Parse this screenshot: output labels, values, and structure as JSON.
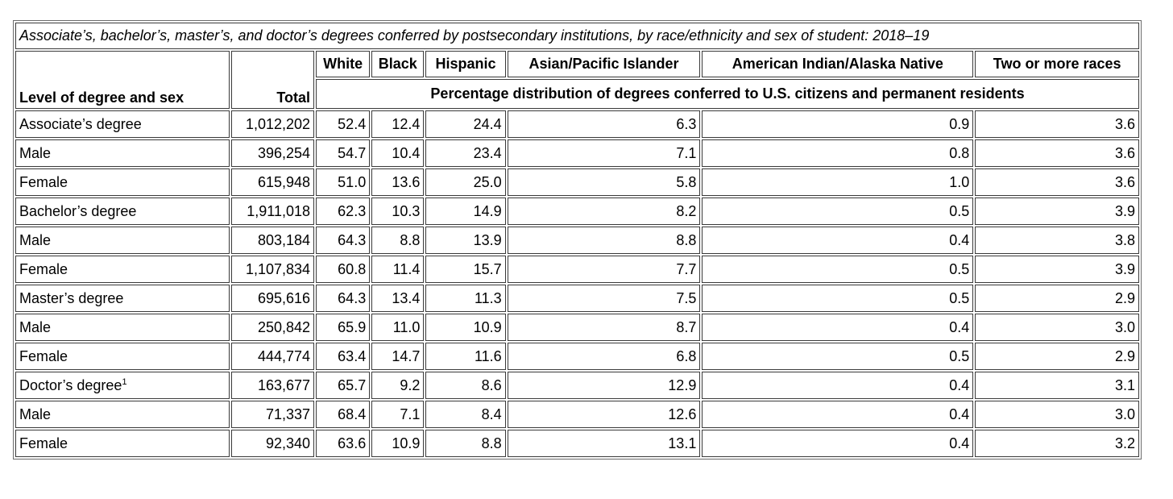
{
  "chart_data": {
    "type": "table",
    "title": "Associate’s, bachelor’s, master’s, and doctor’s degrees conferred by postsecondary institutions, by race/ethnicity and sex of student: 2018–19",
    "header": {
      "row_label_column": "Level of degree and sex",
      "total_column": "Total",
      "race_columns": [
        "White",
        "Black",
        "Hispanic",
        "Asian/Pacific Islander",
        "American Indian/Alaska Native",
        "Two or more races"
      ],
      "span_label": "Percentage distribution of degrees conferred to U.S. citizens and permanent residents"
    },
    "rows": [
      {
        "label": "Associate’s degree",
        "superscript": "",
        "total": "1,012,202",
        "values": [
          "52.4",
          "12.4",
          "24.4",
          "6.3",
          "0.9",
          "3.6"
        ]
      },
      {
        "label": "Male",
        "superscript": "",
        "total": "396,254",
        "values": [
          "54.7",
          "10.4",
          "23.4",
          "7.1",
          "0.8",
          "3.6"
        ]
      },
      {
        "label": "Female",
        "superscript": "",
        "total": "615,948",
        "values": [
          "51.0",
          "13.6",
          "25.0",
          "5.8",
          "1.0",
          "3.6"
        ]
      },
      {
        "label": "Bachelor’s degree",
        "superscript": "",
        "total": "1,911,018",
        "values": [
          "62.3",
          "10.3",
          "14.9",
          "8.2",
          "0.5",
          "3.9"
        ]
      },
      {
        "label": "Male",
        "superscript": "",
        "total": "803,184",
        "values": [
          "64.3",
          "8.8",
          "13.9",
          "8.8",
          "0.4",
          "3.8"
        ]
      },
      {
        "label": "Female",
        "superscript": "",
        "total": "1,107,834",
        "values": [
          "60.8",
          "11.4",
          "15.7",
          "7.7",
          "0.5",
          "3.9"
        ]
      },
      {
        "label": "Master’s degree",
        "superscript": "",
        "total": "695,616",
        "values": [
          "64.3",
          "13.4",
          "11.3",
          "7.5",
          "0.5",
          "2.9"
        ]
      },
      {
        "label": "Male",
        "superscript": "",
        "total": "250,842",
        "values": [
          "65.9",
          "11.0",
          "10.9",
          "8.7",
          "0.4",
          "3.0"
        ]
      },
      {
        "label": "Female",
        "superscript": "",
        "total": "444,774",
        "values": [
          "63.4",
          "14.7",
          "11.6",
          "6.8",
          "0.5",
          "2.9"
        ]
      },
      {
        "label": "Doctor’s degree",
        "superscript": "1",
        "total": "163,677",
        "values": [
          "65.7",
          "9.2",
          "8.6",
          "12.9",
          "0.4",
          "3.1"
        ]
      },
      {
        "label": "Male",
        "superscript": "",
        "total": "71,337",
        "values": [
          "68.4",
          "7.1",
          "8.4",
          "12.6",
          "0.4",
          "3.0"
        ]
      },
      {
        "label": "Female",
        "superscript": "",
        "total": "92,340",
        "values": [
          "63.6",
          "10.9",
          "8.8",
          "13.1",
          "0.4",
          "3.2"
        ]
      }
    ]
  },
  "colors": {
    "background": "#ffffff",
    "text": "#000000",
    "cell_border": "#3a3a3a",
    "table_border": "#6b6b6b"
  }
}
